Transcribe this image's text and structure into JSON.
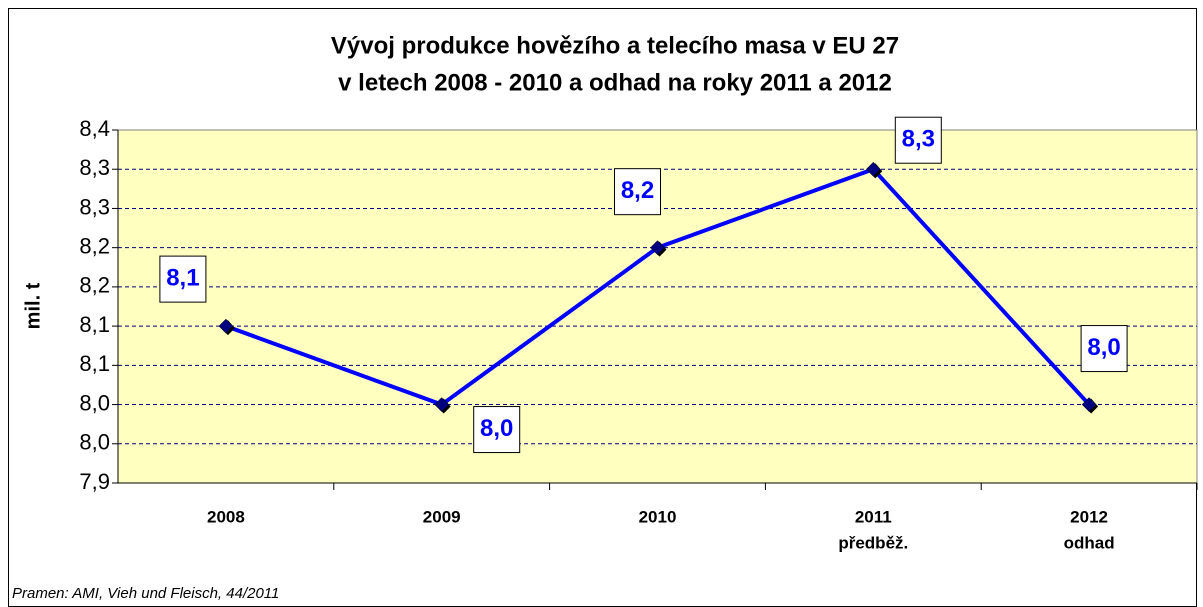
{
  "chart_data": {
    "type": "line",
    "title": [
      "Vývoj produkce hovězího a telecího masa v EU 27",
      "v letech 2008 - 2010 a odhad na roky 2011 a 2012"
    ],
    "y_label": "mil. t",
    "source": "Pramen: AMI, Vieh und Fleisch, 44/2011",
    "categories": [
      "2008",
      "2009",
      "2010",
      "2011",
      "2012"
    ],
    "category_notes": [
      null,
      null,
      null,
      "předběž.",
      "odhad"
    ],
    "series": [
      {
        "name": "produkce",
        "color": "#0000ff",
        "values": [
          8.1,
          8.0,
          8.2,
          8.3,
          8.0
        ],
        "value_labels": [
          "8,1",
          "8,0",
          "8,2",
          "8,3",
          "8,0"
        ]
      }
    ],
    "ylim": [
      7.9,
      8.35
    ],
    "yticks": [
      {
        "value": 7.9,
        "label": "7,9"
      },
      {
        "value": 7.95,
        "label": "8,0"
      },
      {
        "value": 8.0,
        "label": "8,0"
      },
      {
        "value": 8.05,
        "label": "8,1"
      },
      {
        "value": 8.1,
        "label": "8,1"
      },
      {
        "value": 8.15,
        "label": "8,2"
      },
      {
        "value": 8.2,
        "label": "8,2"
      },
      {
        "value": 8.25,
        "label": "8,3"
      },
      {
        "value": 8.3,
        "label": "8,3"
      },
      {
        "value": 8.35,
        "label": "8,4"
      }
    ],
    "grid": true
  }
}
